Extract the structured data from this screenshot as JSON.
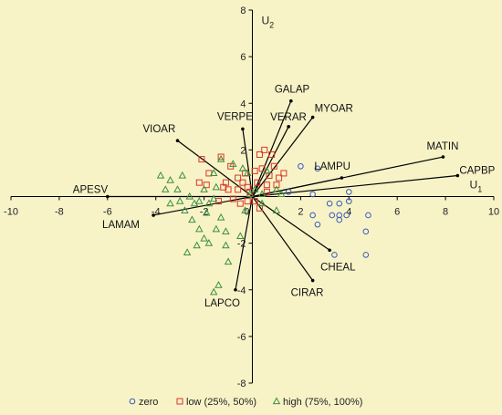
{
  "chart_data": {
    "type": "scatter",
    "title": "",
    "xlabel": "U",
    "xlabel_sub": "1",
    "ylabel": "U",
    "ylabel_sub": "2",
    "xlim": [
      -10,
      10
    ],
    "ylim": [
      -8,
      8
    ],
    "xticks": [
      -10,
      -8,
      -6,
      -4,
      -2,
      0,
      2,
      4,
      6,
      8,
      10
    ],
    "yticks": [
      -8,
      -6,
      -4,
      -2,
      0,
      2,
      4,
      6,
      8
    ],
    "grid": false,
    "legend_position": "bottom",
    "biplot_vectors": [
      {
        "name": "APESV",
        "x": -6.0,
        "y": 0.0
      },
      {
        "name": "LAMAM",
        "x": -4.1,
        "y": -0.8
      },
      {
        "name": "VIOAR",
        "x": -3.1,
        "y": 2.4
      },
      {
        "name": "VERPE",
        "x": -0.4,
        "y": 2.9
      },
      {
        "name": "VERAR",
        "x": 1.5,
        "y": 3.0
      },
      {
        "name": "GALAP",
        "x": 1.6,
        "y": 4.1
      },
      {
        "name": "MYOAR",
        "x": 2.5,
        "y": 3.4
      },
      {
        "name": "LAMPU",
        "x": 3.7,
        "y": 0.8
      },
      {
        "name": "MATIN",
        "x": 7.9,
        "y": 1.7
      },
      {
        "name": "CAPBP",
        "x": 8.5,
        "y": 0.9
      },
      {
        "name": "CHEAL",
        "x": 3.2,
        "y": -2.3
      },
      {
        "name": "CIRAR",
        "x": 2.5,
        "y": -3.6
      },
      {
        "name": "LAPCO",
        "x": -0.7,
        "y": -4.0
      }
    ],
    "series": [
      {
        "name": "zero",
        "marker": "circle",
        "color": "#3b5bb5",
        "points": [
          [
            2.0,
            1.3
          ],
          [
            2.7,
            1.2
          ],
          [
            1.5,
            0.2
          ],
          [
            2.5,
            0.1
          ],
          [
            3.2,
            -0.3
          ],
          [
            3.6,
            -0.3
          ],
          [
            4.0,
            -0.2
          ],
          [
            4.0,
            0.2
          ],
          [
            2.5,
            -0.8
          ],
          [
            3.3,
            -0.8
          ],
          [
            3.6,
            -0.8
          ],
          [
            3.9,
            -0.8
          ],
          [
            4.8,
            -0.8
          ],
          [
            2.7,
            -1.2
          ],
          [
            3.6,
            -1.0
          ],
          [
            4.7,
            -1.5
          ],
          [
            4.7,
            -2.5
          ],
          [
            3.4,
            -2.5
          ]
        ]
      },
      {
        "name": "low (25%, 50%)",
        "marker": "square",
        "color": "#d9362b",
        "points": [
          [
            -2.1,
            1.6
          ],
          [
            -1.8,
            1.0
          ],
          [
            -1.3,
            1.7
          ],
          [
            -1.2,
            0.4
          ],
          [
            -1.1,
            0.6
          ],
          [
            -0.9,
            1.3
          ],
          [
            -0.6,
            0.8
          ],
          [
            -0.4,
            0.6
          ],
          [
            -0.3,
            1.0
          ],
          [
            -0.1,
            0.2
          ],
          [
            0.1,
            1.1
          ],
          [
            0.3,
            1.8
          ],
          [
            0.4,
            1.2
          ],
          [
            0.5,
            2.0
          ],
          [
            0.7,
            0.9
          ],
          [
            0.9,
            1.3
          ],
          [
            1.0,
            0.5
          ],
          [
            1.1,
            0.8
          ],
          [
            1.3,
            1.0
          ],
          [
            0.6,
            0.2
          ],
          [
            -0.5,
            -0.3
          ],
          [
            -0.2,
            -0.2
          ],
          [
            0.1,
            -0.2
          ],
          [
            0.3,
            -0.5
          ],
          [
            -2.2,
            0.6
          ],
          [
            -1.9,
            0.5
          ],
          [
            -1.4,
            -0.2
          ],
          [
            -0.8,
            -0.1
          ],
          [
            -1.0,
            0.3
          ],
          [
            -0.6,
            0.3
          ],
          [
            0.8,
            1.8
          ],
          [
            0.2,
            0.6
          ],
          [
            0.6,
            0.5
          ],
          [
            -0.2,
            0.4
          ]
        ]
      },
      {
        "name": "high (75%, 100%)",
        "marker": "triangle",
        "color": "#3d8f3d",
        "points": [
          [
            -3.8,
            0.9
          ],
          [
            -3.4,
            0.7
          ],
          [
            -3.1,
            0.3
          ],
          [
            -3.0,
            -0.2
          ],
          [
            -2.8,
            -0.6
          ],
          [
            -2.6,
            0.0
          ],
          [
            -2.4,
            -0.3
          ],
          [
            -2.2,
            -0.2
          ],
          [
            -2.0,
            0.3
          ],
          [
            -1.9,
            -0.7
          ],
          [
            -1.8,
            -0.3
          ],
          [
            -1.6,
            -0.1
          ],
          [
            -1.5,
            0.4
          ],
          [
            -1.3,
            -0.9
          ],
          [
            -2.5,
            -1.0
          ],
          [
            -2.2,
            -1.4
          ],
          [
            -2.0,
            -1.8
          ],
          [
            -1.8,
            -2.0
          ],
          [
            -2.3,
            -2.1
          ],
          [
            -1.5,
            -1.4
          ],
          [
            -1.6,
            1.0
          ],
          [
            -1.3,
            1.6
          ],
          [
            -0.8,
            1.4
          ],
          [
            -0.4,
            1.2
          ],
          [
            -0.2,
            1.0
          ],
          [
            -1.4,
            -3.8
          ],
          [
            -1.6,
            -4.1
          ],
          [
            -1.0,
            -2.8
          ],
          [
            -1.1,
            -1.5
          ],
          [
            -1.1,
            -2.1
          ],
          [
            -0.5,
            -1.7
          ],
          [
            -0.1,
            0.1
          ],
          [
            0.1,
            0.3
          ],
          [
            0.4,
            0.1
          ],
          [
            0.4,
            -0.3
          ],
          [
            0.6,
            1.1
          ],
          [
            1.0,
            0.3
          ],
          [
            1.2,
            0.1
          ],
          [
            -0.3,
            -0.6
          ],
          [
            1.0,
            -0.6
          ],
          [
            -2.7,
            -2.4
          ],
          [
            -3.4,
            -0.3
          ],
          [
            -3.6,
            0.3
          ],
          [
            -2.9,
            0.9
          ]
        ]
      }
    ]
  }
}
